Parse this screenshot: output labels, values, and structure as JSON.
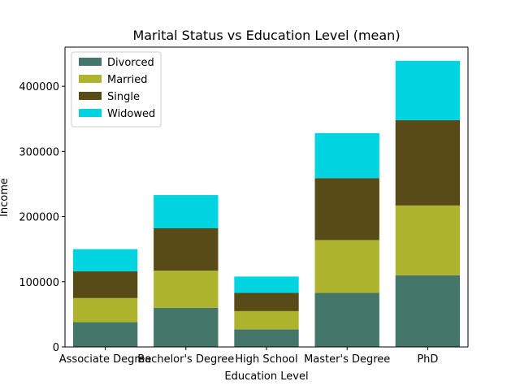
{
  "chart_data": {
    "type": "bar",
    "stacked": true,
    "title": "Marital Status vs Education Level (mean)",
    "xlabel": "Education Level",
    "ylabel": "Income",
    "categories": [
      "Associate Degree",
      "Bachelor's Degree",
      "High School",
      "Master's Degree",
      "PhD"
    ],
    "ylim": [
      0,
      460000
    ],
    "yticks": [
      0,
      100000,
      200000,
      300000,
      400000
    ],
    "grid": false,
    "legend_position": "top-left",
    "series": [
      {
        "name": "Divorced",
        "color": "#44776a",
        "values": [
          38000,
          60000,
          27000,
          83000,
          110000
        ]
      },
      {
        "name": "Married",
        "color": "#afb42f",
        "values": [
          37000,
          57000,
          28000,
          81000,
          107000
        ]
      },
      {
        "name": "Single",
        "color": "#594b18",
        "values": [
          41000,
          65000,
          28000,
          95000,
          131000
        ]
      },
      {
        "name": "Widowed",
        "color": "#00d4e0",
        "values": [
          34000,
          51000,
          25000,
          69000,
          91000
        ]
      }
    ]
  }
}
